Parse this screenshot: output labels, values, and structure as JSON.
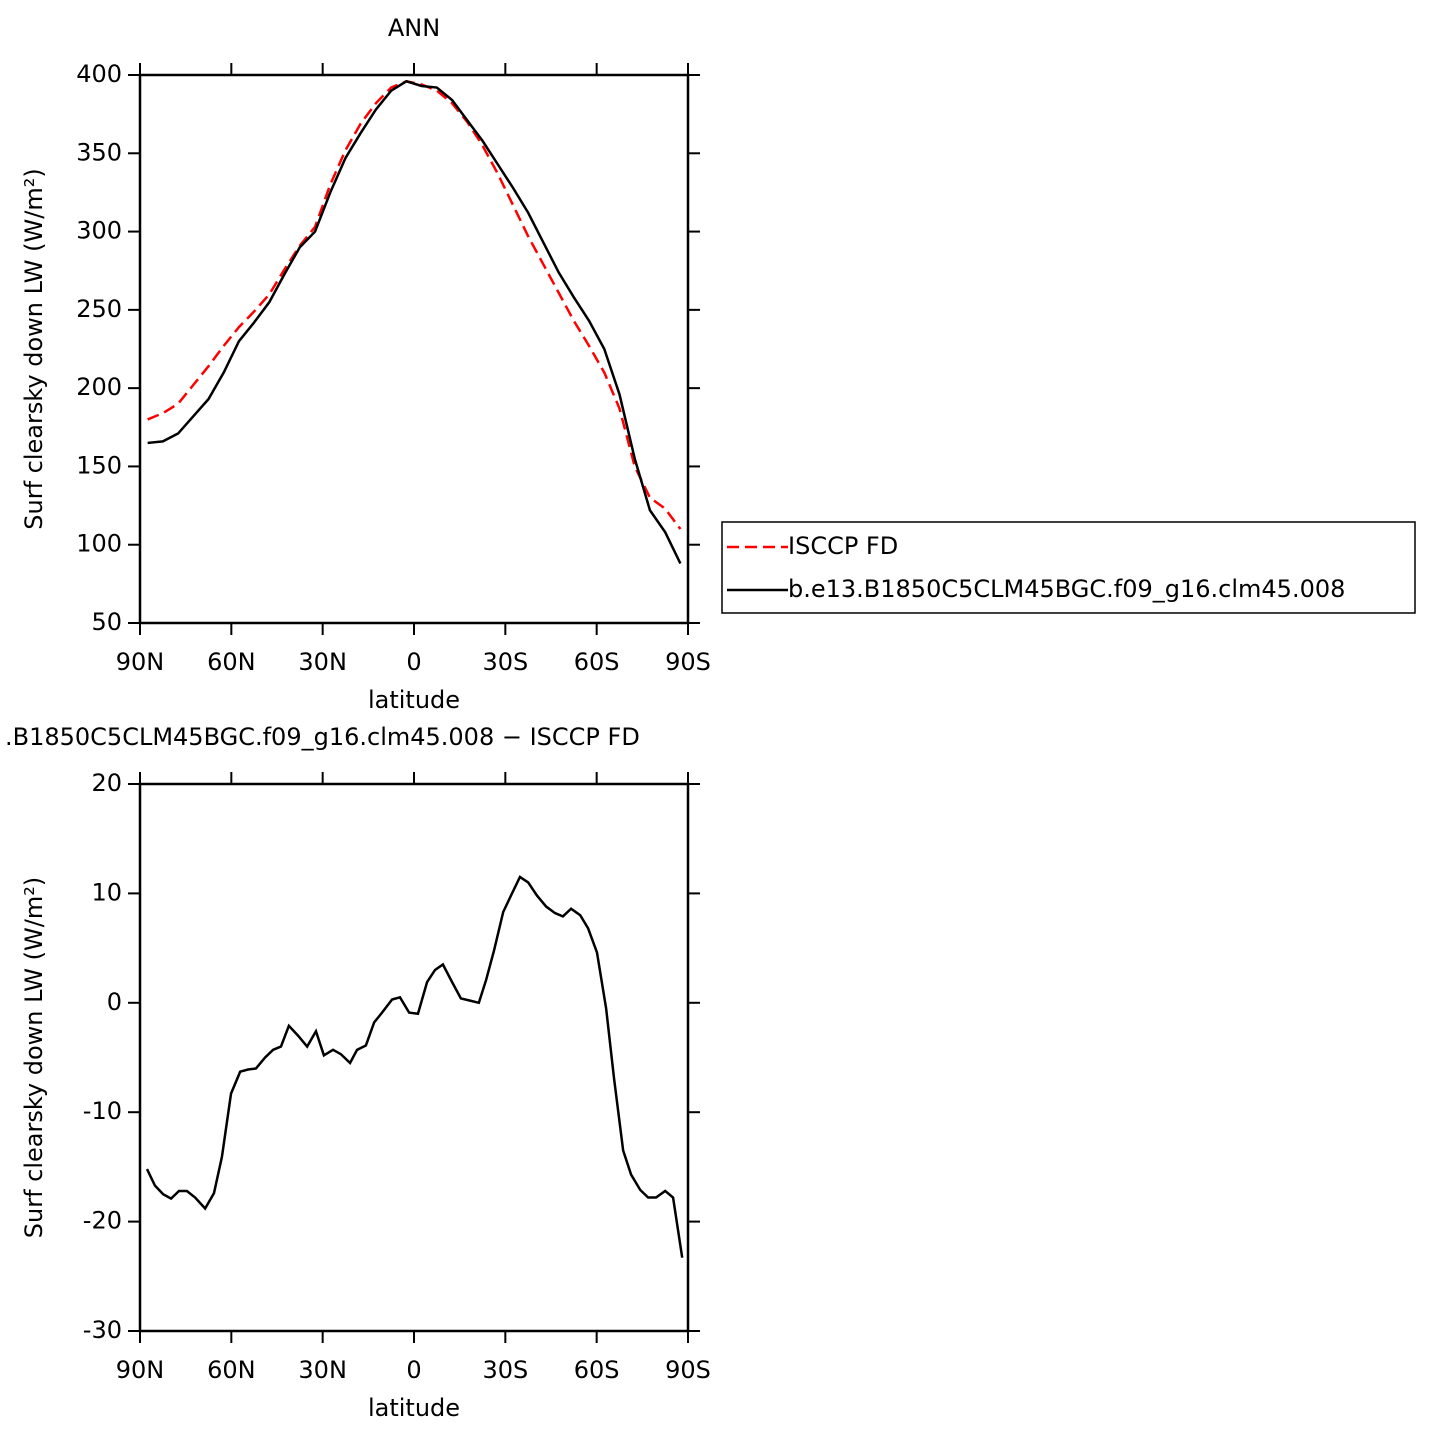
{
  "chart_data": [
    {
      "type": "line",
      "title": "ANN",
      "xlabel": "latitude",
      "ylabel": "Surf clearsky down LW (W/m²)",
      "xlim": [
        90,
        -90
      ],
      "ylim": [
        50,
        400
      ],
      "xticks": [
        {
          "value": 90,
          "label": "90N"
        },
        {
          "value": 60,
          "label": "60N"
        },
        {
          "value": 30,
          "label": "30N"
        },
        0,
        {
          "value": -30,
          "label": "30S"
        },
        {
          "value": -60,
          "label": "60S"
        },
        {
          "value": -90,
          "label": "90S"
        }
      ],
      "yticks": [
        50,
        100,
        150,
        200,
        250,
        300,
        350,
        400
      ],
      "legend": "right",
      "x": [
        87.5,
        82.5,
        77.5,
        72.5,
        67.5,
        62.5,
        57.5,
        52.5,
        47.5,
        42.5,
        37.5,
        32.5,
        27.5,
        22.5,
        17.5,
        12.5,
        7.5,
        2.5,
        -2.5,
        -7.5,
        -12.5,
        -17.5,
        -22.5,
        -27.5,
        -32.5,
        -37.5,
        -42.5,
        -47.5,
        -52.5,
        -57.5,
        -62.5,
        -67.5,
        -72.5,
        -77.5,
        -82.5,
        -87.5
      ],
      "series": [
        {
          "name": "ISCCP FD",
          "color": "#ff0000",
          "line_style": "dashed",
          "values": [
            180,
            184,
            190,
            202,
            214,
            227,
            239,
            249,
            260,
            276,
            291,
            303,
            330,
            352,
            369,
            382,
            392,
            396,
            394,
            390,
            382,
            370,
            355,
            337,
            317,
            297,
            279,
            261,
            243,
            227,
            210,
            187,
            150,
            130,
            123,
            110
          ]
        },
        {
          "name": "b.e13.B1850C5CLM45BGC.f09_g16.clm45.008",
          "color": "#000000",
          "line_style": "solid",
          "values": [
            165,
            166,
            171,
            182,
            193,
            210,
            230,
            242,
            255,
            273,
            290,
            300,
            325,
            347,
            363,
            378,
            390,
            396,
            393,
            392,
            384,
            371,
            358,
            343,
            328,
            312,
            293,
            274,
            258,
            243,
            225,
            196,
            155,
            122,
            108,
            88
          ]
        }
      ]
    },
    {
      "type": "line",
      "title": ".B1850C5CLM45BGC.f09_g16.clm45.008 − ISCCP FD",
      "xlabel": "latitude",
      "ylabel": "Surf clearsky down LW (W/m²)",
      "xlim": [
        90,
        -90
      ],
      "ylim": [
        -30,
        20
      ],
      "xticks": [
        {
          "value": 90,
          "label": "90N"
        },
        {
          "value": 60,
          "label": "60N"
        },
        {
          "value": 30,
          "label": "30N"
        },
        0,
        {
          "value": -30,
          "label": "30S"
        },
        {
          "value": -60,
          "label": "60S"
        },
        {
          "value": -90,
          "label": "90S"
        }
      ],
      "yticks": [
        -30,
        -20,
        -10,
        0,
        10,
        20
      ],
      "color": "#000000",
      "x": [
        87.7,
        85.1,
        82.4,
        79.8,
        77.2,
        74.6,
        71.9,
        68.6,
        65.7,
        63.1,
        60.1,
        57.1,
        54.5,
        51.9,
        48.9,
        46.3,
        43.7,
        41.1,
        38.1,
        35.1,
        32.2,
        29.6,
        26.6,
        24.0,
        21.0,
        18.7,
        15.8,
        13.1,
        10.5,
        7.2,
        4.6,
        1.6,
        -1.3,
        -4.3,
        -6.9,
        -9.5,
        -12.5,
        -15.4,
        -18.4,
        -21.3,
        -23.7,
        -26.3,
        -29.3,
        -32.2,
        -34.8,
        -37.5,
        -40.4,
        -43.4,
        -46.3,
        -48.9,
        -51.6,
        -54.6,
        -57.2,
        -60.1,
        -63.1,
        -65.7,
        -68.7,
        -71.3,
        -74.3,
        -76.9,
        -79.5,
        -82.5,
        -85.1,
        -88.1
      ],
      "values": [
        -15.2,
        -16.7,
        -17.5,
        -17.9,
        -17.2,
        -17.2,
        -17.8,
        -18.8,
        -17.4,
        -14.1,
        -8.3,
        -6.3,
        -6.1,
        -6.0,
        -5.0,
        -4.3,
        -4.0,
        -2.1,
        -3.0,
        -4.0,
        -2.6,
        -4.8,
        -4.3,
        -4.7,
        -5.5,
        -4.3,
        -3.9,
        -1.8,
        -0.9,
        0.3,
        0.5,
        -0.9,
        -1.0,
        1.9,
        3.0,
        3.5,
        1.9,
        0.4,
        0.2,
        0.0,
        2.1,
        4.8,
        8.3,
        10.0,
        11.5,
        11.0,
        9.8,
        8.8,
        8.2,
        7.9,
        8.6,
        8.0,
        6.8,
        4.6,
        -0.5,
        -6.9,
        -13.5,
        -15.7,
        -17.1,
        -17.8,
        -17.8,
        -17.2,
        -17.8,
        -23.3
      ]
    }
  ]
}
